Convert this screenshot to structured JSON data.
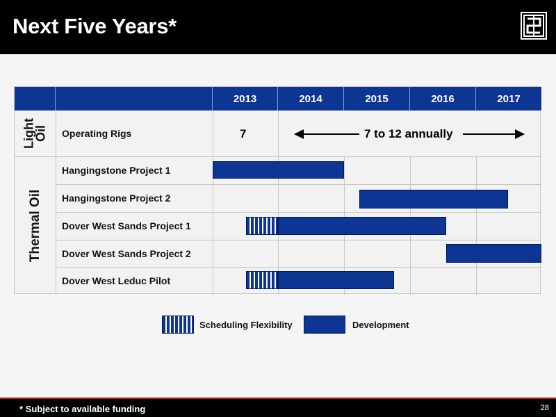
{
  "header": {
    "title": "Next Five Years*",
    "logo_icon": "company-logo-icon"
  },
  "table": {
    "years": [
      "2013",
      "2014",
      "2015",
      "2016",
      "2017"
    ],
    "categories": {
      "light_oil_line1": "Light",
      "light_oil_line2": "Oil",
      "thermal_oil": "Thermal Oil"
    },
    "light_oil_row": {
      "label": "Operating Rigs",
      "value_2013": "7",
      "value_range": "7 to 12 annually"
    },
    "thermal_rows": [
      {
        "label": "Hangingstone Project 1"
      },
      {
        "label": "Hangingstone Project 2"
      },
      {
        "label": "Dover West Sands Project 1"
      },
      {
        "label": "Dover West Sands Project 2"
      },
      {
        "label": "Dover West Leduc Pilot"
      }
    ]
  },
  "legend": {
    "flexibility": "Scheduling Flexibility",
    "development": "Development"
  },
  "colors": {
    "development_bar": "#0d3594",
    "header_bg": "#000000",
    "footer_accent": "#c4161c"
  },
  "footer": {
    "footnote": "* Subject to available funding",
    "page_number": "28"
  }
}
